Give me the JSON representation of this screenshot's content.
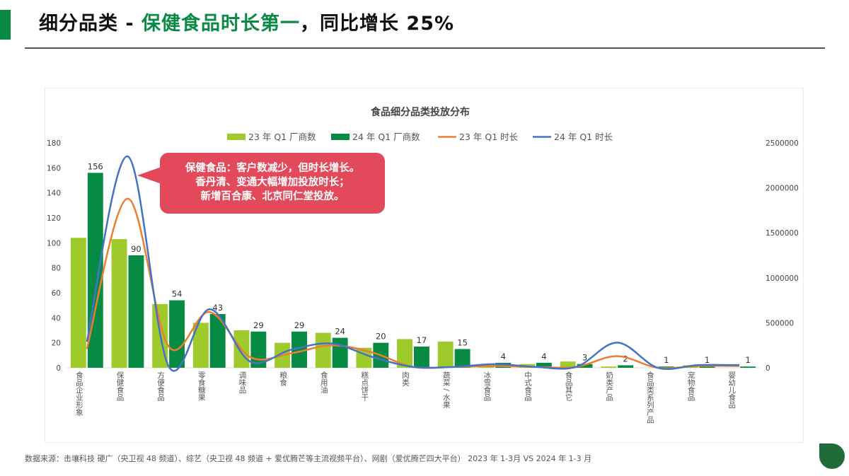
{
  "header": {
    "title_prefix": "细分品类 - ",
    "title_highlight": "保健食品时长第一",
    "title_suffix": "，同比增长 25%",
    "accent_color": "#078a44"
  },
  "callout": {
    "lines": [
      "保健食品：客户数减少，但时长增长。",
      "香丹清、变通大幅增加投放时长；",
      "新增百合康、北京同仁堂投放。"
    ],
    "color": "#e2495b"
  },
  "footer": {
    "source": "数据来源：击壤科技 硬广（央卫视 48 频道）、综艺（央卫视 48 频道 + 爱优腾芒等主流视频平台）、网剧（爱优腾芒四大平台） 2023 年 1-3月 VS 2024 年 1-3 月"
  },
  "chart_data": {
    "type": "bar",
    "title": "食品细分品类投放分布",
    "categories": [
      "食品企业形象",
      "保健食品",
      "方便食品",
      "零食糖果",
      "调味品",
      "粮食",
      "食用油",
      "糕点饼干",
      "肉类",
      "蔬菜 / 水果",
      "冰雪食品",
      "中式食品",
      "食品其它",
      "奶类产品",
      "食品类系列产品",
      "宠物食品",
      "婴幼儿食品"
    ],
    "series": [
      {
        "name": "23 年 Q1 厂商数",
        "type": "bar",
        "axis": "left",
        "color": "#9ecb2b",
        "values": [
          104,
          103,
          51,
          36,
          30,
          20,
          28,
          16,
          23,
          21,
          1,
          3,
          5,
          1,
          0,
          2,
          0
        ]
      },
      {
        "name": "24 年 Q1 厂商数",
        "type": "bar",
        "axis": "left",
        "color": "#078a44",
        "values": [
          156,
          90,
          54,
          43,
          29,
          29,
          24,
          20,
          17,
          15,
          4,
          4,
          3,
          2,
          1,
          1,
          1
        ],
        "labels": [
          "156",
          "90",
          "54",
          "43",
          "29",
          "29",
          "24",
          "20",
          "17",
          "15",
          "4",
          "4",
          "3",
          "2",
          "1",
          "1",
          "1"
        ]
      },
      {
        "name": "23 年 Q1 时长",
        "type": "line",
        "axis": "right",
        "color": "#ed7d31",
        "values": [
          210000,
          1880000,
          240000,
          620000,
          120000,
          160000,
          250000,
          170000,
          10000,
          10000,
          20000,
          10000,
          10000,
          130000,
          0,
          20000,
          20000
        ]
      },
      {
        "name": "24 年 Q1 时长",
        "type": "line",
        "axis": "right",
        "color": "#4472c4",
        "values": [
          290000,
          2350000,
          20000,
          650000,
          70000,
          200000,
          270000,
          120000,
          10000,
          10000,
          40000,
          10000,
          10000,
          280000,
          0,
          30000,
          30000
        ]
      }
    ],
    "xlabel": "",
    "ylabel": "",
    "ylim": [
      0,
      180
    ],
    "yticks": [
      "0",
      "20",
      "40",
      "60",
      "80",
      "100",
      "120",
      "140",
      "160",
      "180"
    ],
    "y2lim": [
      0,
      2500000
    ],
    "y2ticks": [
      "0",
      "500000",
      "1000000",
      "1500000",
      "2000000",
      "2500000"
    ],
    "legend_position": "top",
    "grid": false
  }
}
